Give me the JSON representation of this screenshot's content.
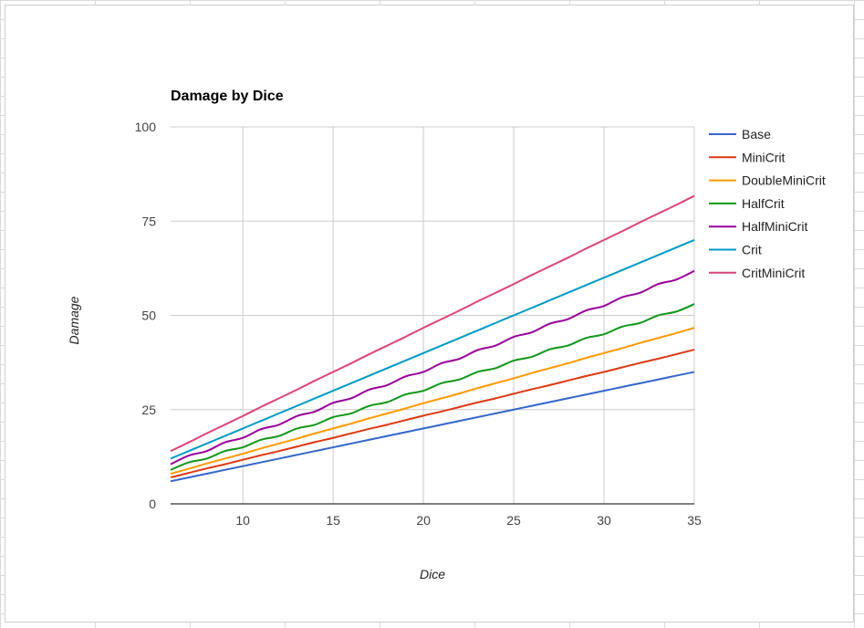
{
  "chart_data": {
    "type": "line",
    "title": "Damage by Dice",
    "xlabel": "Dice",
    "ylabel": "Damage",
    "xlim": [
      6,
      35
    ],
    "ylim": [
      0,
      100
    ],
    "xticks": [
      10,
      15,
      20,
      25,
      30,
      35
    ],
    "yticks": [
      0,
      25,
      50,
      75,
      100
    ],
    "grid": true,
    "legend_position": "right",
    "x": [
      6,
      7,
      8,
      9,
      10,
      11,
      12,
      13,
      14,
      15,
      16,
      17,
      18,
      19,
      20,
      21,
      22,
      23,
      24,
      25,
      26,
      27,
      28,
      29,
      30,
      31,
      32,
      33,
      34,
      35
    ],
    "series": [
      {
        "name": "Base",
        "color": "#3366cc",
        "values": [
          6,
          7,
          8,
          9,
          10,
          11,
          12,
          13,
          14,
          15,
          16,
          17,
          18,
          19,
          20,
          21,
          22,
          23,
          24,
          25,
          26,
          27,
          28,
          29,
          30,
          31,
          32,
          33,
          34,
          35
        ]
      },
      {
        "name": "MiniCrit",
        "color": "#dc3912",
        "values": [
          7,
          8.2,
          9.4,
          10.5,
          11.7,
          12.9,
          14,
          15.2,
          16.4,
          17.5,
          18.7,
          19.9,
          21,
          22.2,
          23.4,
          24.5,
          25.7,
          26.9,
          28,
          29.2,
          30.4,
          31.5,
          32.7,
          33.9,
          35,
          36.2,
          37.4,
          38.5,
          39.7,
          40.9
        ]
      },
      {
        "name": "DoubleMiniCrit",
        "color": "#ff9900",
        "values": [
          8,
          9.3,
          10.7,
          12,
          13.3,
          14.7,
          16,
          17.3,
          18.7,
          20,
          21.3,
          22.7,
          24,
          25.3,
          26.7,
          28,
          29.3,
          30.7,
          32,
          33.3,
          34.7,
          36,
          37.3,
          38.7,
          40,
          41.3,
          42.7,
          44,
          45.3,
          46.7
        ]
      },
      {
        "name": "HalfCrit",
        "color": "#109618",
        "values": [
          9,
          11,
          12,
          14,
          15,
          17,
          18,
          20,
          21,
          23,
          24,
          26,
          27,
          29,
          30,
          32,
          33,
          35,
          36,
          38,
          39,
          41,
          42,
          44,
          45,
          47,
          48,
          50,
          51,
          53
        ]
      },
      {
        "name": "HalfMiniCrit",
        "color": "#990099",
        "values": [
          10.5,
          12.8,
          14,
          16.3,
          17.5,
          19.8,
          21,
          23.3,
          24.5,
          26.8,
          28,
          30.3,
          31.5,
          33.8,
          35,
          37.3,
          38.5,
          40.8,
          42,
          44.3,
          45.5,
          47.8,
          49,
          51.3,
          52.5,
          54.8,
          56,
          58.3,
          59.5,
          61.8
        ]
      },
      {
        "name": "Crit",
        "color": "#0099c6",
        "values": [
          12,
          14,
          16,
          18,
          20,
          22,
          24,
          26,
          28,
          30,
          32,
          34,
          36,
          38,
          40,
          42,
          44,
          46,
          48,
          50,
          52,
          54,
          56,
          58,
          60,
          62,
          64,
          66,
          68,
          70
        ]
      },
      {
        "name": "CritMiniCrit",
        "color": "#dd4477",
        "values": [
          14,
          16.3,
          18.7,
          21,
          23.3,
          25.7,
          28,
          30.3,
          32.7,
          35,
          37.3,
          39.7,
          42,
          44.3,
          46.7,
          49,
          51.3,
          53.7,
          56,
          58.3,
          60.7,
          63,
          65.3,
          67.7,
          70,
          72.3,
          74.7,
          77,
          79.3,
          81.7
        ]
      }
    ]
  }
}
